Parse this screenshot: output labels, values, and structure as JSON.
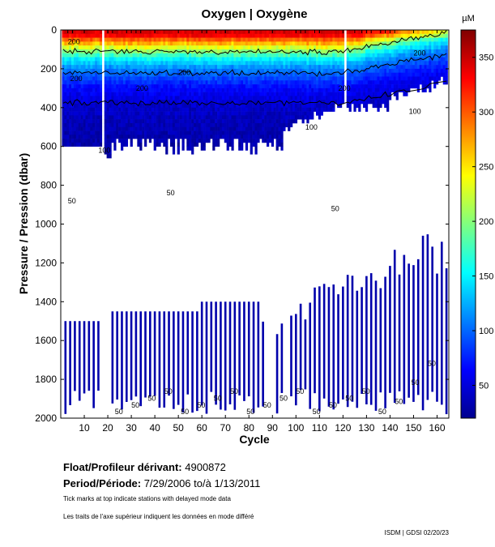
{
  "chart_data": {
    "type": "heatmap",
    "title": "Oxygen | Oxygène",
    "xlabel": "Cycle",
    "ylabel": "Pressure / Pression (dbar)",
    "xlim": [
      0,
      165
    ],
    "ylim": [
      2000,
      0
    ],
    "x_ticks": [
      10,
      20,
      30,
      40,
      50,
      60,
      70,
      80,
      90,
      100,
      110,
      120,
      130,
      140,
      150,
      160
    ],
    "y_ticks": [
      0,
      200,
      400,
      600,
      800,
      1000,
      1200,
      1400,
      1600,
      1800,
      2000
    ],
    "colorbar": {
      "label": "µM",
      "range": [
        20,
        375
      ],
      "ticks": [
        50,
        100,
        150,
        200,
        250,
        300,
        350
      ],
      "colormap": "jet"
    },
    "contour_levels": [
      50,
      100,
      200
    ],
    "contour_labels": [
      "200",
      "200",
      "200",
      "200",
      "200",
      "200",
      "100",
      "100",
      "100",
      "50",
      "50",
      "50"
    ],
    "deep_labels": [
      "50",
      "50",
      "50",
      "50",
      "50",
      "50",
      "50",
      "50",
      "50",
      "50",
      "50",
      "50",
      "50",
      "50",
      "50",
      "50",
      "50",
      "50",
      "50",
      "50"
    ],
    "gaps_cycles": [
      18,
      121
    ],
    "oxygen_profile": {
      "depths_dbar": [
        0,
        50,
        100,
        150,
        200,
        300,
        400,
        500,
        600
      ],
      "oxygen_uM": [
        330,
        300,
        215,
        150,
        110,
        65,
        45,
        38,
        35
      ]
    }
  },
  "float_label": "Float/Profileur dérivant:",
  "float_id": "4900872",
  "period_label": "Period/Période:",
  "period_start": "7/29/2006",
  "period_to": "to/à",
  "period_end": "1/13/2011",
  "note_en": "Tick marks at top indicate stations with delayed mode data",
  "note_fr": "Les traits de l'axe supérieur indiquent les données en mode différé",
  "credit": "ISDM | GDSI 02/20/23"
}
